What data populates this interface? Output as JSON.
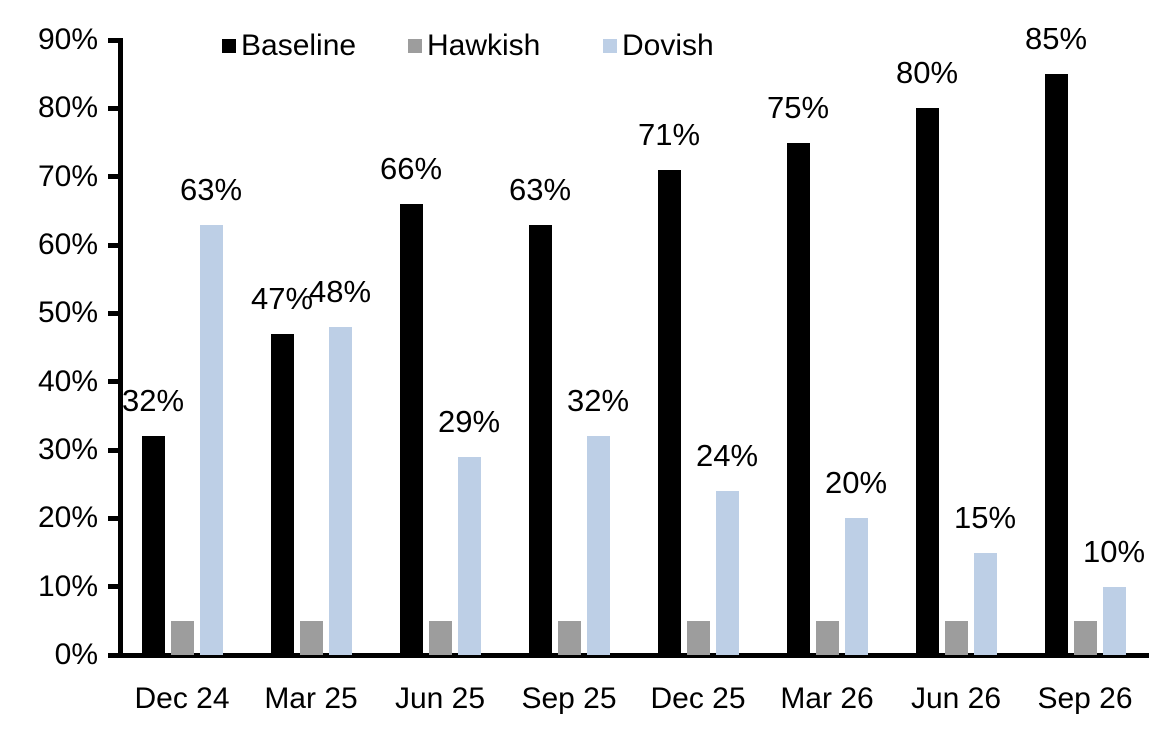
{
  "chart_data": {
    "type": "bar",
    "title": "",
    "xlabel": "",
    "ylabel": "",
    "categories": [
      "Dec 24",
      "Mar 25",
      "Jun 25",
      "Sep 25",
      "Dec 25",
      "Mar 26",
      "Jun 26",
      "Sep 26"
    ],
    "series": [
      {
        "name": "Baseline",
        "color": "#000000",
        "values": [
          32,
          47,
          66,
          63,
          71,
          75,
          80,
          85
        ],
        "data_labels": [
          "32%",
          "47%",
          "66%",
          "63%",
          "71%",
          "75%",
          "80%",
          "85%"
        ],
        "show_labels": true
      },
      {
        "name": "Hawkish",
        "color": "#9d9d9d",
        "values": [
          5,
          5,
          5,
          5,
          5,
          5,
          5,
          5
        ],
        "data_labels": [],
        "show_labels": false
      },
      {
        "name": "Dovish",
        "color": "#bdcfe6",
        "values": [
          63,
          48,
          29,
          32,
          24,
          20,
          15,
          10
        ],
        "data_labels": [
          "63%",
          "48%",
          "29%",
          "32%",
          "24%",
          "20%",
          "15%",
          "10%"
        ],
        "show_labels": true
      }
    ],
    "y_axis": {
      "min": 0,
      "max": 90,
      "step": 10,
      "tick_labels": [
        "0%",
        "10%",
        "20%",
        "30%",
        "40%",
        "50%",
        "60%",
        "70%",
        "80%",
        "90%"
      ]
    },
    "legend": {
      "position": "top",
      "items": [
        "Baseline",
        "Hawkish",
        "Dovish"
      ]
    },
    "grid": false,
    "axis_color": "#000000",
    "text_color": "#000000"
  }
}
